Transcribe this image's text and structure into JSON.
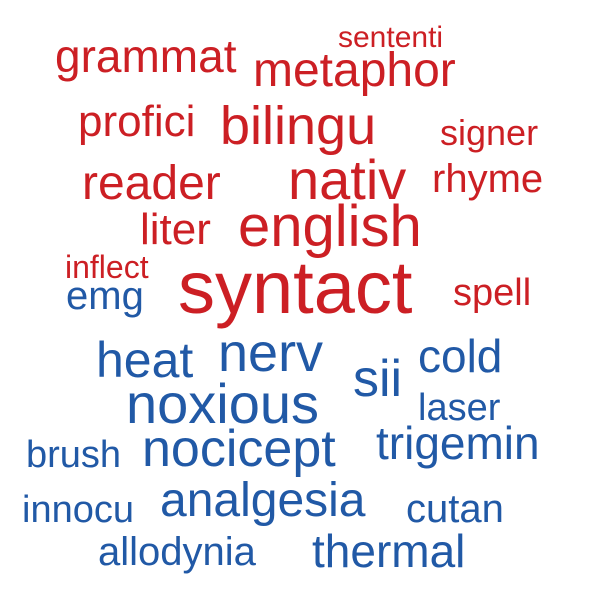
{
  "colors": {
    "group_a": "#cc1f24",
    "group_b": "#2159a6"
  },
  "words": [
    {
      "text": "sententi",
      "group": "a",
      "weight": 30
    },
    {
      "text": "grammat",
      "group": "a",
      "weight": 46
    },
    {
      "text": "metaphor",
      "group": "a",
      "weight": 48
    },
    {
      "text": "profici",
      "group": "a",
      "weight": 44
    },
    {
      "text": "bilingu",
      "group": "a",
      "weight": 54
    },
    {
      "text": "signer",
      "group": "a",
      "weight": 36
    },
    {
      "text": "reader",
      "group": "a",
      "weight": 48
    },
    {
      "text": "nativ",
      "group": "a",
      "weight": 56
    },
    {
      "text": "rhyme",
      "group": "a",
      "weight": 40
    },
    {
      "text": "liter",
      "group": "a",
      "weight": 44
    },
    {
      "text": "english",
      "group": "a",
      "weight": 58
    },
    {
      "text": "inflect",
      "group": "a",
      "weight": 32
    },
    {
      "text": "syntact",
      "group": "a",
      "weight": 74
    },
    {
      "text": "spell",
      "group": "a",
      "weight": 38
    },
    {
      "text": "emg",
      "group": "b",
      "weight": 40
    },
    {
      "text": "heat",
      "group": "b",
      "weight": 50
    },
    {
      "text": "nerv",
      "group": "b",
      "weight": 54
    },
    {
      "text": "sii",
      "group": "b",
      "weight": 52
    },
    {
      "text": "cold",
      "group": "b",
      "weight": 46
    },
    {
      "text": "noxious",
      "group": "b",
      "weight": 56
    },
    {
      "text": "laser",
      "group": "b",
      "weight": 38
    },
    {
      "text": "brush",
      "group": "b",
      "weight": 38
    },
    {
      "text": "nocicept",
      "group": "b",
      "weight": 52
    },
    {
      "text": "trigemin",
      "group": "b",
      "weight": 46
    },
    {
      "text": "innocu",
      "group": "b",
      "weight": 38
    },
    {
      "text": "analgesia",
      "group": "b",
      "weight": 48
    },
    {
      "text": "cutan",
      "group": "b",
      "weight": 40
    },
    {
      "text": "allodynia",
      "group": "b",
      "weight": 40
    },
    {
      "text": "thermal",
      "group": "b",
      "weight": 46
    }
  ]
}
